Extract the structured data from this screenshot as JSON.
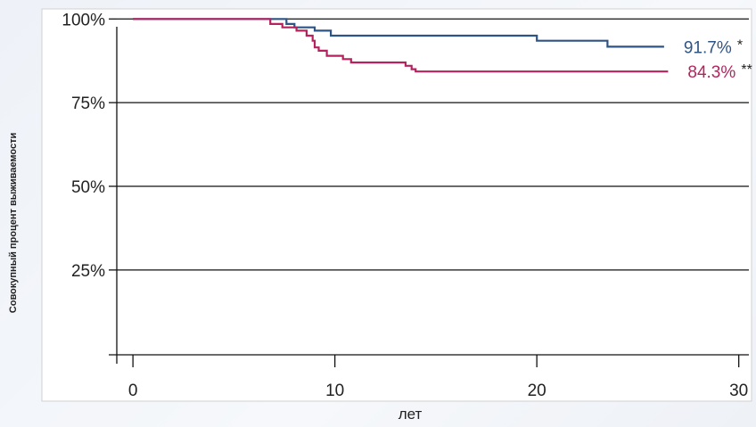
{
  "chart_data": {
    "type": "line",
    "xlabel": "лет",
    "ylabel": "Совокупный процент выживаемости",
    "xlim": [
      -0.8,
      30.5
    ],
    "ylim": [
      -3,
      103
    ],
    "x_ticks": [
      0,
      10,
      20,
      30
    ],
    "x_tick_labels": [
      "0",
      "10",
      "20",
      "30"
    ],
    "y_ticks": [
      25,
      50,
      75,
      100
    ],
    "y_tick_labels": [
      "25%",
      "50%",
      "75%",
      "100%"
    ],
    "grid": "horizontal",
    "series": [
      {
        "color": "#2e5486",
        "end_label": "91.7%",
        "end_marker": "*",
        "x": [
          0,
          7.6,
          7.6,
          8.0,
          8.0,
          9.0,
          9.0,
          9.8,
          9.8,
          20.0,
          20.0,
          23.5,
          23.5,
          26.3
        ],
        "y": [
          100,
          100,
          98.5,
          98.5,
          97.5,
          97.5,
          96.5,
          96.5,
          95,
          95,
          93.5,
          93.5,
          91.7,
          91.7
        ]
      },
      {
        "color": "#b5225e",
        "end_label": "84.3%",
        "end_marker": "**",
        "x": [
          0,
          6.8,
          6.8,
          7.4,
          7.4,
          8.1,
          8.1,
          8.6,
          8.6,
          8.9,
          8.9,
          9.0,
          9.0,
          9.2,
          9.2,
          9.6,
          9.6,
          10.4,
          10.4,
          10.8,
          10.8,
          13.5,
          13.5,
          13.8,
          13.8,
          14.0,
          14.0,
          26.5
        ],
        "y": [
          100,
          100,
          98.5,
          98.5,
          97.5,
          97.5,
          96.5,
          96.5,
          95,
          95,
          93.5,
          93.5,
          91.5,
          91.5,
          90.5,
          90.5,
          89,
          89,
          88,
          88,
          87,
          87,
          86,
          86,
          85,
          85,
          84.3,
          84.3
        ]
      }
    ]
  }
}
